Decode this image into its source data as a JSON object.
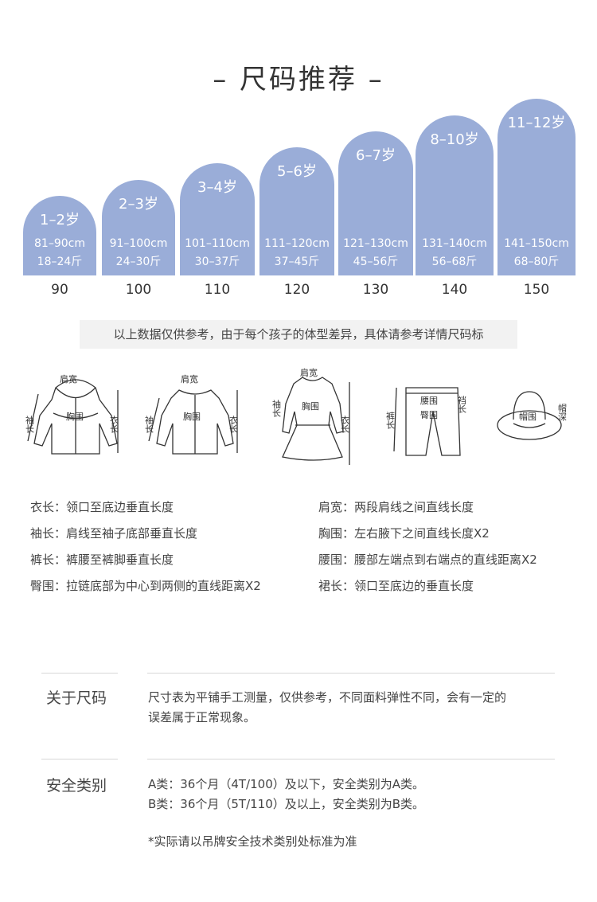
{
  "title": "– 尺码推荐 –",
  "accent_color": "#9aadd8",
  "sizes": [
    {
      "age": "1–2岁",
      "height": "81–90cm",
      "weight": "18–24斤",
      "size": "90"
    },
    {
      "age": "2–3岁",
      "height": "91–100cm",
      "weight": "24–30斤",
      "size": "100"
    },
    {
      "age": "3–4岁",
      "height": "101–110cm",
      "weight": "30–37斤",
      "size": "110"
    },
    {
      "age": "5–6岁",
      "height": "111–120cm",
      "weight": "37–45斤",
      "size": "120"
    },
    {
      "age": "6–7岁",
      "height": "121–130cm",
      "weight": "45–56斤",
      "size": "130"
    },
    {
      "age": "8–10岁",
      "height": "131–140cm",
      "weight": "56–68斤",
      "size": "140"
    },
    {
      "age": "11–12岁",
      "height": "141–150cm",
      "weight": "68–80斤",
      "size": "150"
    }
  ],
  "disclaimer": "以上数据仅供参考，由于每个孩子的体型差异，具体请参考详情尺码标",
  "illustration_labels": {
    "shoulder": "肩宽",
    "sleeve": "袖长",
    "chest": "胸围",
    "length": "衣长",
    "waist": "腰围",
    "hip": "臀围",
    "rise": "裆长",
    "pants_length": "裤长",
    "hat_circ": "帽围",
    "hat_depth": "帽深"
  },
  "definitions": [
    {
      "text": "衣长：领口至底边垂直长度"
    },
    {
      "text": "肩宽：两段肩线之间直线长度"
    },
    {
      "text": "袖长：肩线至袖子底部垂直长度"
    },
    {
      "text": "胸围：左右腋下之间直线长度X2"
    },
    {
      "text": "裤长：裤腰至裤脚垂直长度"
    },
    {
      "text": "腰围：腰部左端点到右端点的直线距离X2"
    },
    {
      "text": "臀围：拉链底部为中心到两侧的直线距离X2"
    },
    {
      "text": "裙长：领口至底边的垂直长度"
    }
  ],
  "about": {
    "label": "关于尺码",
    "line1": "尺寸表为平铺手工测量，仅供参考，不同面料弹性不同，会有一定的",
    "line2": "误差属于正常现象。"
  },
  "safety": {
    "label": "安全类别",
    "line1": "A类：36个月（4T/100）及以下，安全类别为A类。",
    "line2": "B类：36个月（5T/110）及以上，安全类别为B类。",
    "footnote": "*实际请以吊牌安全技术类别处标准为准"
  }
}
